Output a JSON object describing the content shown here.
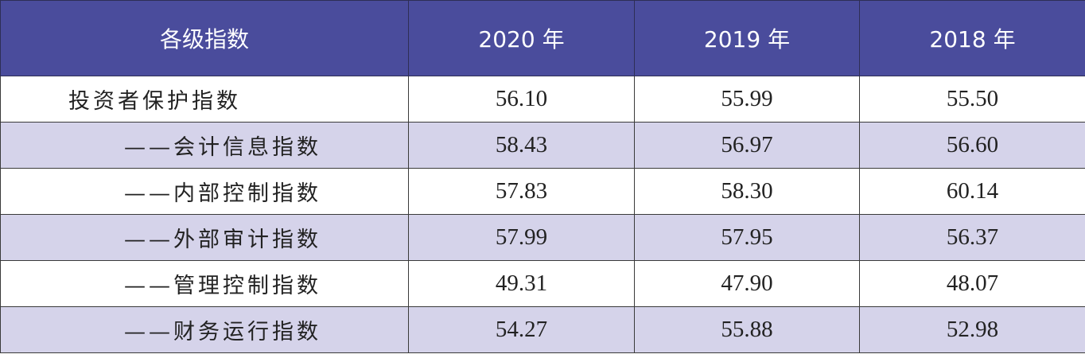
{
  "table": {
    "header": [
      "各级指数",
      "2020 年",
      "2019 年",
      "2018 年"
    ],
    "rows": [
      [
        "投资者保护指数",
        "56.10",
        "55.99",
        "55.50"
      ],
      [
        "——会计信息指数",
        "58.43",
        "56.97",
        "56.60"
      ],
      [
        "——内部控制指数",
        "57.83",
        "58.30",
        "60.14"
      ],
      [
        "——外部审计指数",
        "57.99",
        "57.95",
        "56.37"
      ],
      [
        "——管理控制指数",
        "49.31",
        "47.90",
        "48.07"
      ],
      [
        "——财务运行指数",
        "54.27",
        "55.88",
        "52.98"
      ]
    ]
  }
}
